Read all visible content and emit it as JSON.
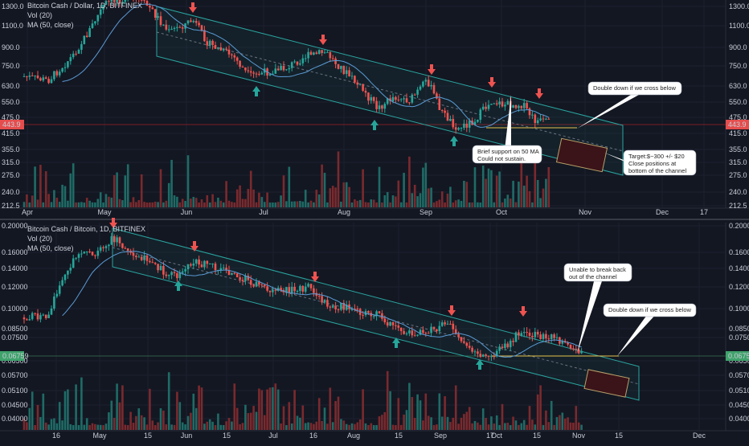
{
  "charts": [
    {
      "id": "top",
      "header": {
        "title": "Bitcoin Cash / Dollar, 1D, BITFINEX",
        "vol": "Vol (20)",
        "ma": "MA (50, close)"
      },
      "price_ticks": [
        "1300.0",
        "1100.0",
        "900.0",
        "750.0",
        "630.0",
        "550.0",
        "475.0",
        "415.0",
        "355.0",
        "315.0",
        "275.0",
        "240.0",
        "212.5"
      ],
      "time_labels": [
        "Apr",
        "May",
        "Jun",
        "Jul",
        "Aug",
        "Sep",
        "Oct",
        "Nov",
        "Dec",
        "17"
      ],
      "current_price": "443.9",
      "annotations": [
        {
          "lines": [
            "Double down if we cross below"
          ]
        },
        {
          "lines": [
            "Target:$~300 +/- $20",
            "Close positions at",
            "bottom of the channel"
          ]
        },
        {
          "lines": [
            "Brief support on 50 MA",
            "Could not sustain."
          ]
        }
      ]
    },
    {
      "id": "bottom",
      "header": {
        "title": "Bitcoin Cash / Bitcoin, 1D, BITFINEX",
        "vol": "Vol (20)",
        "ma": "MA (50, close)"
      },
      "price_ticks": [
        "0.20000",
        "0.16000",
        "0.14000",
        "0.12000",
        "0.10000",
        "0.08500",
        "0.07500",
        "0.06500",
        "0.05700",
        "0.05100",
        "0.04500",
        "0.04000"
      ],
      "time_labels": [
        "16",
        "May",
        "15",
        "Jun",
        "15",
        "Jul",
        "16",
        "Aug",
        "15",
        "Sep",
        "17",
        "Oct",
        "15",
        "Nov",
        "15",
        "Dec"
      ],
      "current_price": "0.06759",
      "annotations": [
        {
          "lines": [
            "Unable to break back",
            "out of the channel"
          ]
        },
        {
          "lines": [
            "Double down if we cross below"
          ]
        }
      ]
    }
  ],
  "chart_data": [
    {
      "type": "candlestick",
      "title": "Bitcoin Cash / Dollar, 1D, BITFINEX",
      "y_scale": "log",
      "ylim": [
        200,
        1300
      ],
      "x": [
        "Apr",
        "May",
        "Jun",
        "Jul",
        "Aug",
        "Sep",
        "Oct",
        "Nov",
        "Dec",
        "17"
      ],
      "approx_close": [
        760,
        900,
        1100,
        1200,
        900,
        800,
        650,
        560,
        550,
        480,
        470,
        460,
        443.9
      ],
      "current_price": 443.9,
      "overlays": [
        "Vol (20)",
        "MA (50, close)",
        "descending channel"
      ]
    },
    {
      "type": "candlestick",
      "title": "Bitcoin Cash / Bitcoin, 1D, BITFINEX",
      "y_scale": "log",
      "ylim": [
        0.038,
        0.2
      ],
      "x": [
        "16",
        "May",
        "15",
        "Jun",
        "15",
        "Jul",
        "16",
        "Aug",
        "15",
        "Sep",
        "17",
        "Oct",
        "15",
        "Nov",
        "15",
        "Dec"
      ],
      "approx_close": [
        0.093,
        0.17,
        0.16,
        0.14,
        0.12,
        0.11,
        0.1,
        0.09,
        0.08,
        0.075,
        0.085,
        0.078,
        0.06759
      ],
      "current_price": 0.06759,
      "overlays": [
        "Vol (20)",
        "MA (50, close)",
        "descending channel"
      ]
    }
  ]
}
